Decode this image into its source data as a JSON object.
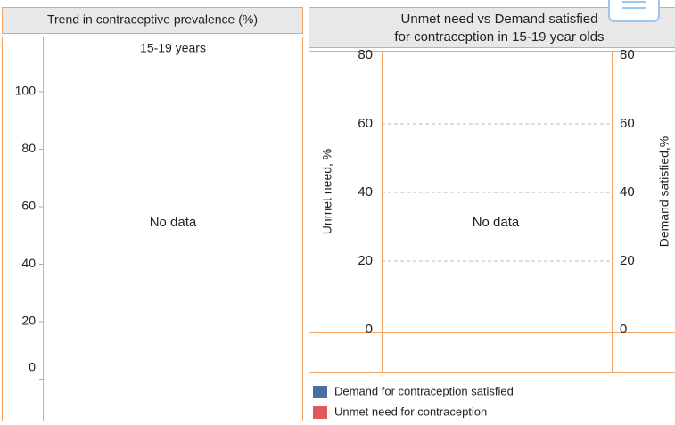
{
  "chart_data": [
    {
      "type": "line",
      "title": "Trend in contraceptive prevalence (%)",
      "subtitle": "15-19 years",
      "annotation": "No data",
      "ylim": [
        0,
        100
      ],
      "yticks": [
        0,
        20,
        40,
        60,
        80,
        100
      ],
      "series": []
    },
    {
      "type": "bar",
      "title": "Unmet need vs Demand satisfied for contraception in 15-19 year olds",
      "annotation": "No data",
      "ylabel": "Unmet need, %",
      "y2label": "Demand satisfied,%",
      "ylim": [
        0,
        80
      ],
      "yticks": [
        0,
        20,
        40,
        60,
        80
      ],
      "y2lim": [
        0,
        80
      ],
      "y2ticks": [
        0,
        20,
        40,
        60,
        80
      ],
      "grid": true,
      "series": [
        {
          "name": "Demand for contraception satisfied",
          "color": "#4a6fa5",
          "values": []
        },
        {
          "name": "Unmet need for contraception",
          "color": "#e05858",
          "values": []
        }
      ]
    }
  ]
}
